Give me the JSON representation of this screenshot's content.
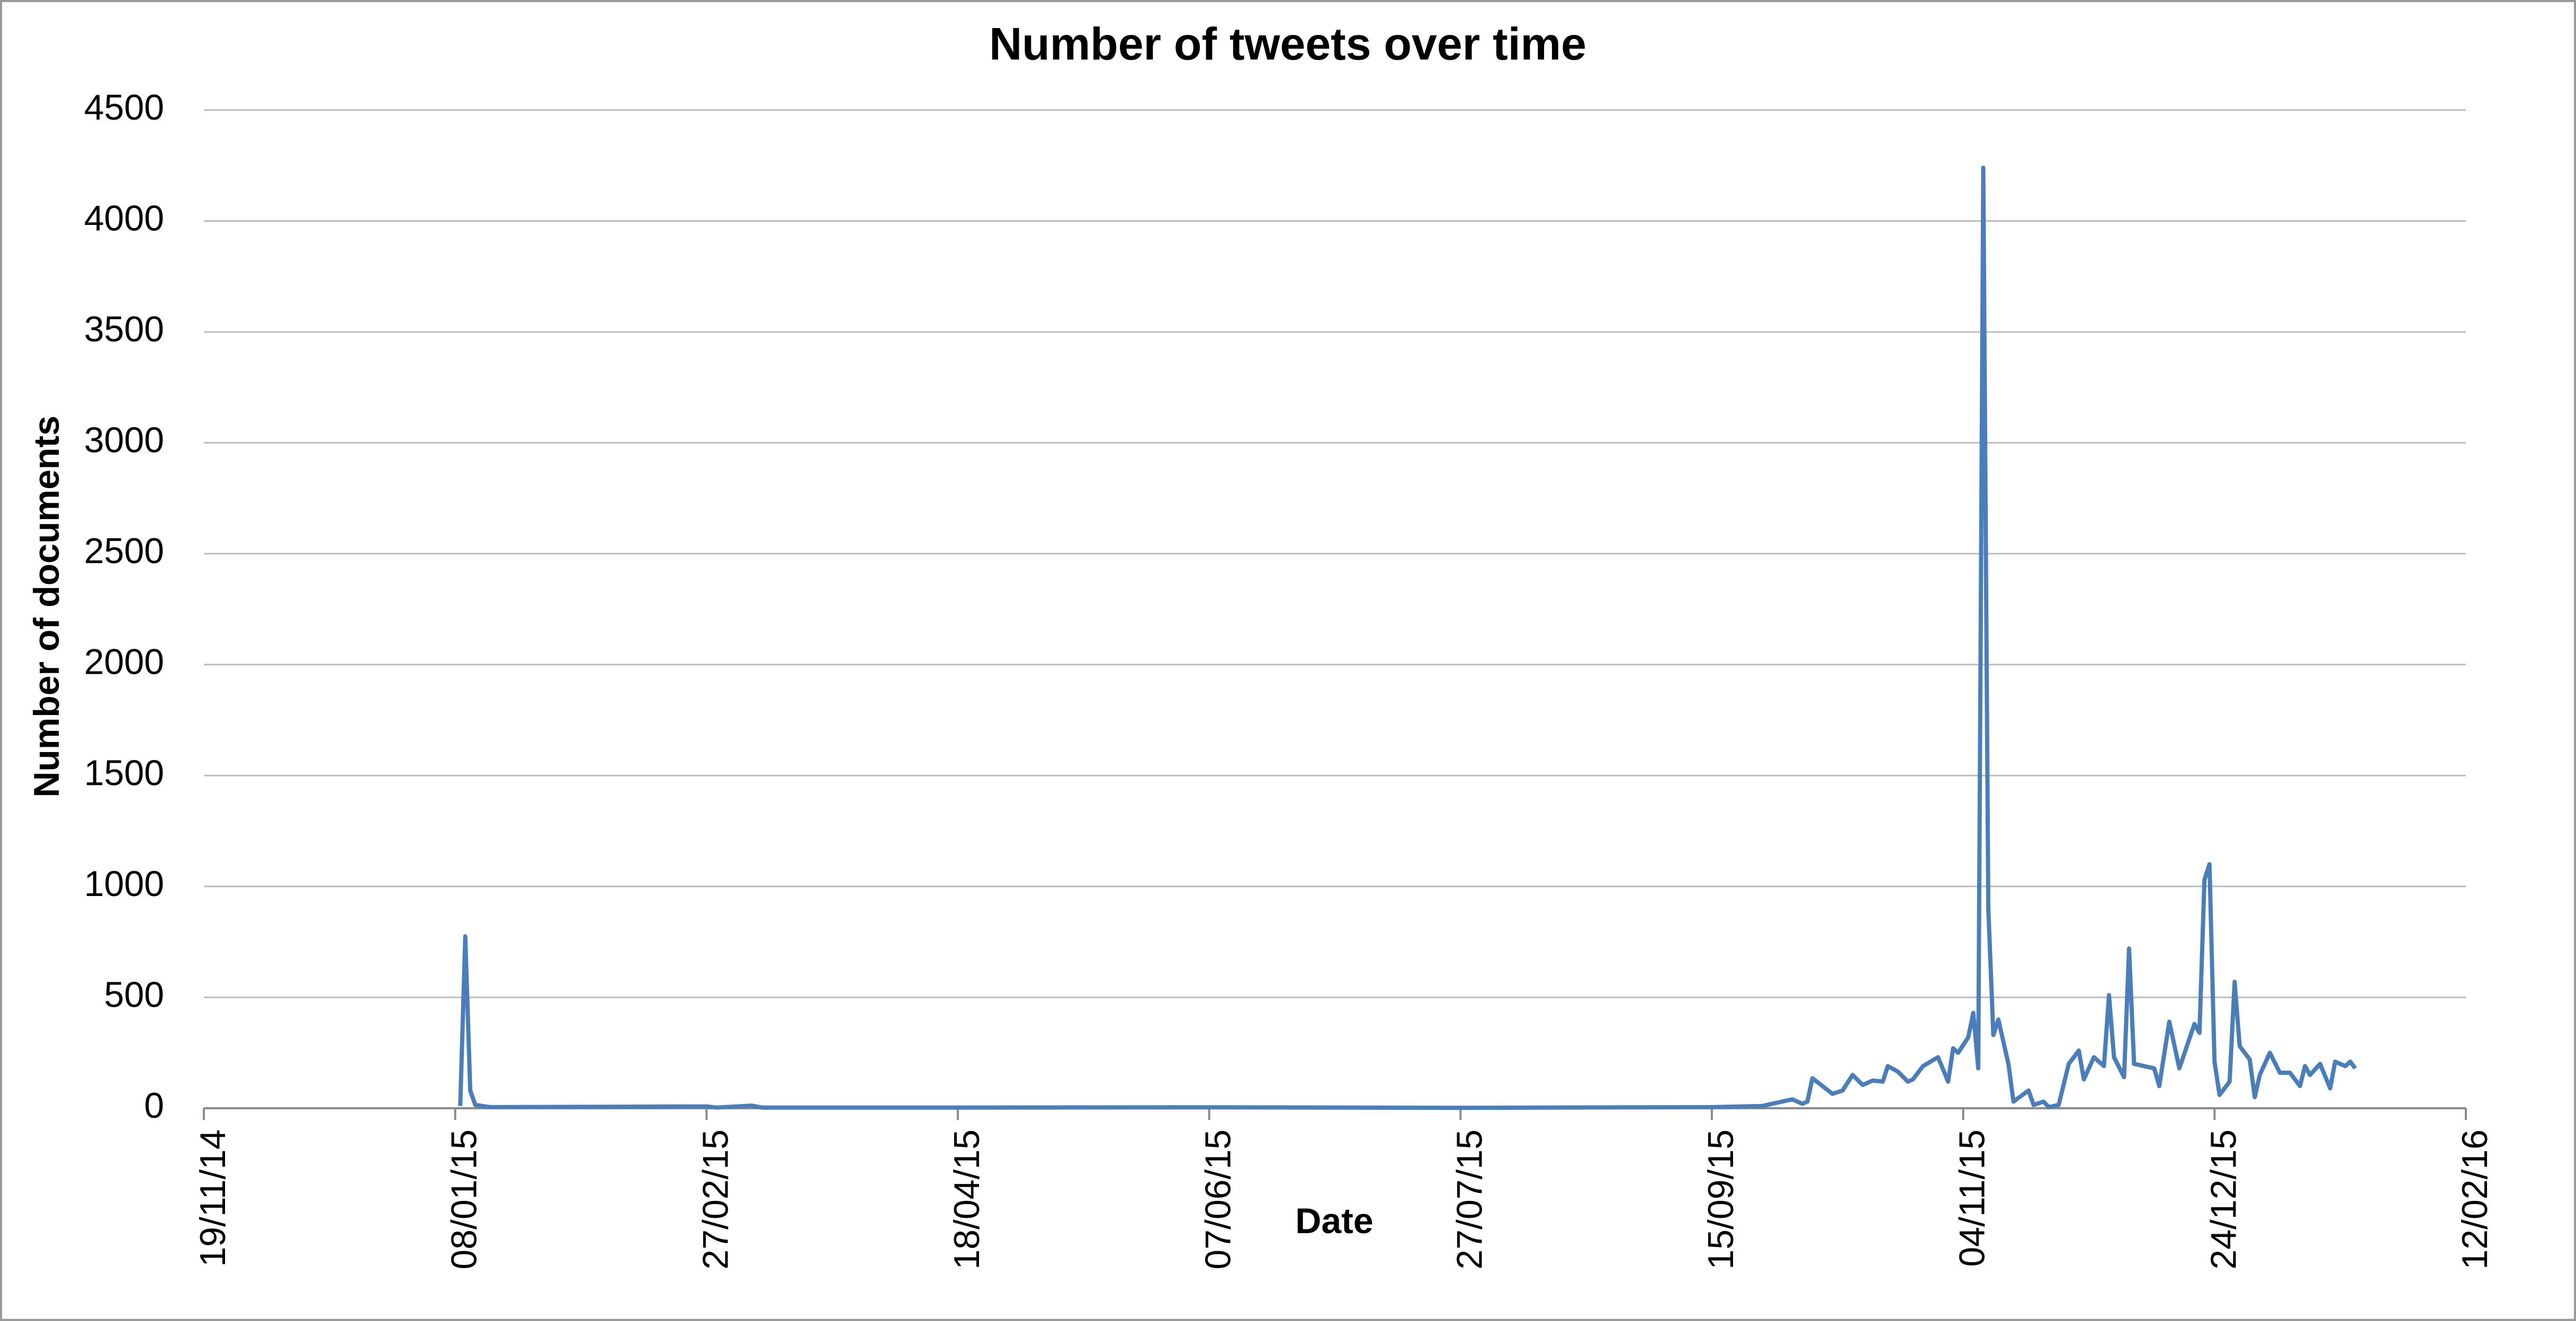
{
  "chart_data": {
    "type": "line",
    "title": "Number of tweets over time",
    "x_label": "Date",
    "y_label": "Number of documents",
    "x": [
      "09/01/15",
      "10/01/15",
      "11/01/15",
      "12/01/15",
      "15/01/15",
      "27/02/15",
      "01/03/15",
      "08/03/15",
      "10/03/15",
      "18/04/15",
      "07/06/15",
      "27/07/15",
      "01/09/15",
      "15/09/15",
      "25/09/15",
      "01/10/15",
      "03/10/15",
      "04/10/15",
      "05/10/15",
      "07/10/15",
      "09/10/15",
      "11/10/15",
      "13/10/15",
      "15/10/15",
      "17/10/15",
      "19/10/15",
      "20/10/15",
      "22/10/15",
      "24/10/15",
      "25/10/15",
      "27/10/15",
      "30/10/15",
      "01/11/15",
      "02/11/15",
      "03/11/15",
      "05/11/15",
      "06/11/15",
      "07/11/15",
      "08/11/15",
      "09/11/15",
      "10/11/15",
      "11/11/15",
      "13/11/15",
      "14/11/15",
      "17/11/15",
      "18/11/15",
      "20/11/15",
      "21/11/15",
      "23/11/15",
      "25/11/15",
      "27/11/15",
      "28/11/15",
      "30/11/15",
      "02/12/15",
      "03/12/15",
      "04/12/15",
      "06/12/15",
      "07/12/15",
      "08/12/15",
      "12/12/15",
      "13/12/15",
      "15/12/15",
      "17/12/15",
      "20/12/15",
      "21/12/15",
      "22/12/15",
      "23/12/15",
      "24/12/15",
      "25/12/15",
      "27/12/15",
      "28/12/15",
      "29/12/15",
      "31/12/15",
      "01/01/16",
      "02/01/16",
      "04/01/16",
      "06/01/16",
      "08/01/16",
      "10/01/16",
      "11/01/16",
      "12/01/16",
      "14/01/16",
      "16/01/16",
      "17/01/16",
      "19/01/16",
      "20/01/16",
      "21/01/16"
    ],
    "values": [
      10,
      775,
      80,
      15,
      5,
      8,
      3,
      12,
      3,
      3,
      4,
      2,
      4,
      5,
      10,
      40,
      20,
      30,
      135,
      100,
      65,
      80,
      150,
      105,
      125,
      120,
      190,
      165,
      120,
      130,
      190,
      230,
      120,
      270,
      250,
      320,
      430,
      180,
      4240,
      900,
      330,
      400,
      200,
      30,
      80,
      15,
      30,
      5,
      15,
      200,
      260,
      130,
      230,
      190,
      510,
      230,
      140,
      720,
      200,
      180,
      100,
      390,
      180,
      380,
      340,
      1030,
      1100,
      210,
      60,
      120,
      570,
      280,
      220,
      50,
      150,
      250,
      160,
      160,
      100,
      190,
      150,
      200,
      90,
      210,
      190,
      210,
      180
    ],
    "color": "#4a7ebb",
    "xlim": [
      "19/11/14",
      "12/02/16"
    ],
    "xticks": [
      "19/11/14",
      "08/01/15",
      "27/02/15",
      "18/04/15",
      "07/06/15",
      "27/07/15",
      "15/09/15",
      "04/11/15",
      "24/12/15",
      "12/02/16"
    ],
    "ylim": [
      0,
      4500
    ],
    "yticks": [
      0,
      500,
      1000,
      1500,
      2000,
      2500,
      3000,
      3500,
      4000,
      4500
    ],
    "grid": true
  }
}
